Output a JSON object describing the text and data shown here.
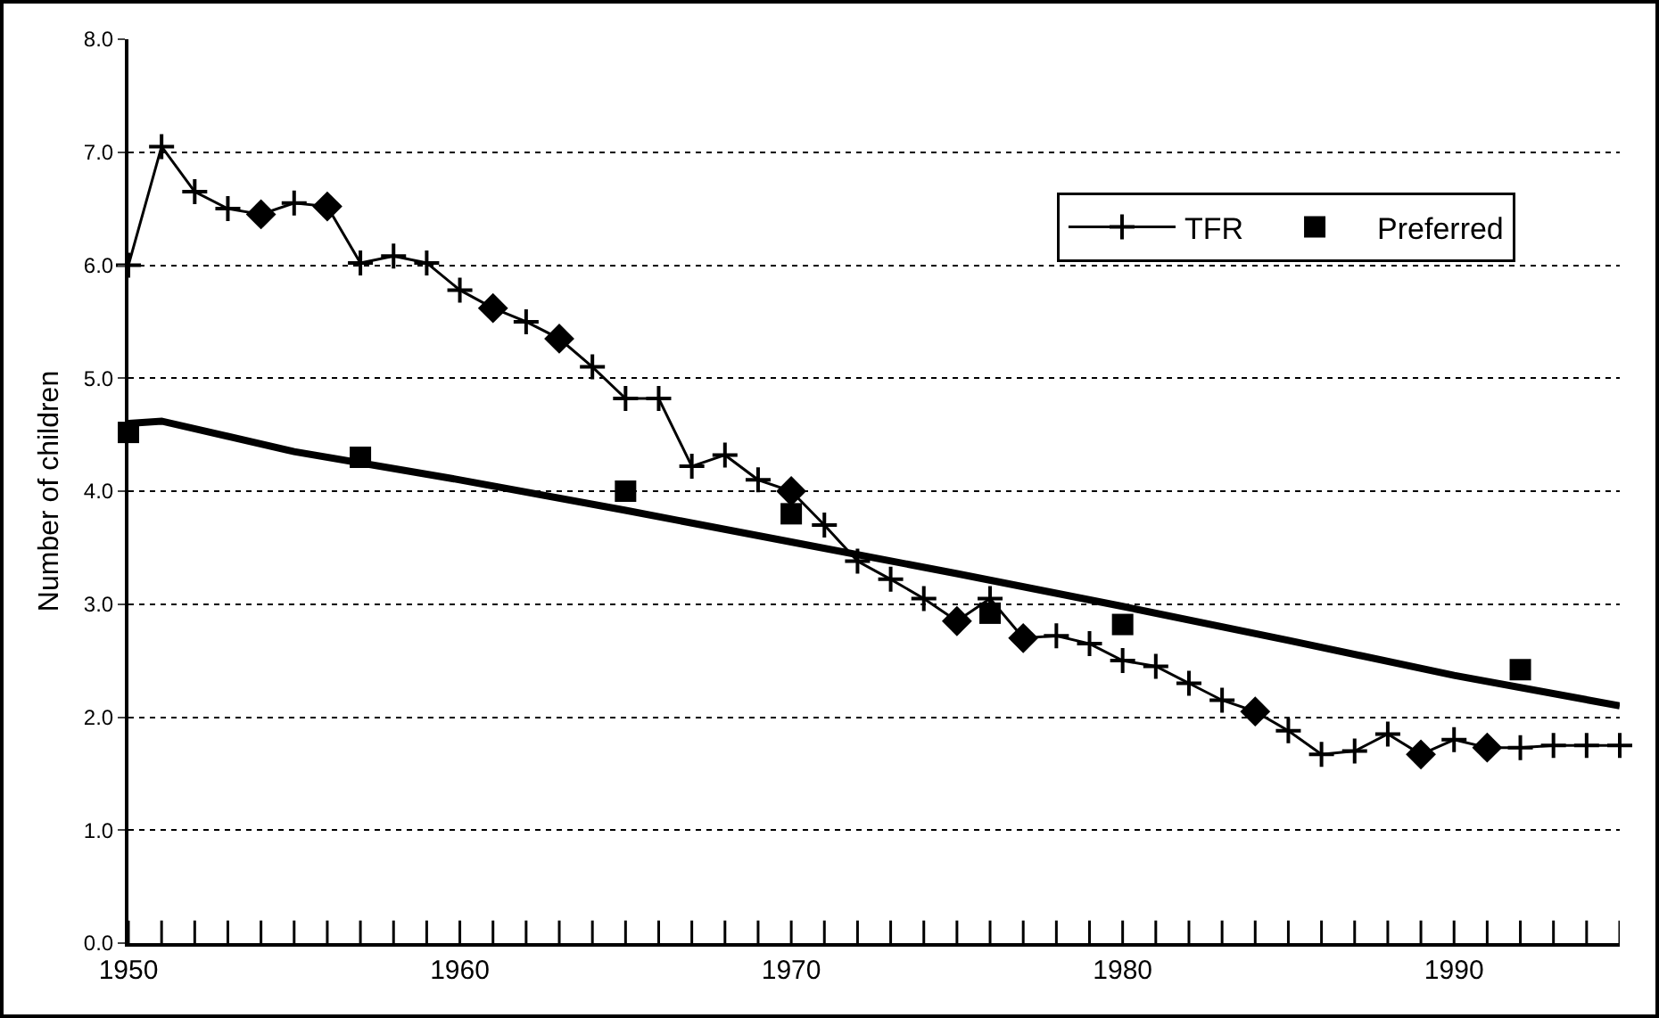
{
  "chart_data": {
    "type": "line",
    "ylabel": "Number of children",
    "xlim": [
      1950,
      1995
    ],
    "xticks": [
      {
        "value": 1950,
        "label": "1950"
      },
      {
        "value": 1951,
        "label": null
      },
      {
        "value": 1952,
        "label": null
      },
      {
        "value": 1953,
        "label": null
      },
      {
        "value": 1954,
        "label": null
      },
      {
        "value": 1955,
        "label": null
      },
      {
        "value": 1956,
        "label": null
      },
      {
        "value": 1957,
        "label": null
      },
      {
        "value": 1958,
        "label": null
      },
      {
        "value": 1959,
        "label": null
      },
      {
        "value": 1960,
        "label": "1960"
      },
      {
        "value": 1961,
        "label": null
      },
      {
        "value": 1962,
        "label": null
      },
      {
        "value": 1963,
        "label": null
      },
      {
        "value": 1964,
        "label": null
      },
      {
        "value": 1965,
        "label": null
      },
      {
        "value": 1966,
        "label": null
      },
      {
        "value": 1967,
        "label": null
      },
      {
        "value": 1968,
        "label": null
      },
      {
        "value": 1969,
        "label": null
      },
      {
        "value": 1970,
        "label": "1970"
      },
      {
        "value": 1971,
        "label": null
      },
      {
        "value": 1972,
        "label": null
      },
      {
        "value": 1973,
        "label": null
      },
      {
        "value": 1974,
        "label": null
      },
      {
        "value": 1975,
        "label": null
      },
      {
        "value": 1976,
        "label": null
      },
      {
        "value": 1977,
        "label": null
      },
      {
        "value": 1978,
        "label": null
      },
      {
        "value": 1979,
        "label": null
      },
      {
        "value": 1980,
        "label": "1980"
      },
      {
        "value": 1981,
        "label": null
      },
      {
        "value": 1982,
        "label": null
      },
      {
        "value": 1983,
        "label": null
      },
      {
        "value": 1984,
        "label": null
      },
      {
        "value": 1985,
        "label": null
      },
      {
        "value": 1986,
        "label": null
      },
      {
        "value": 1987,
        "label": null
      },
      {
        "value": 1988,
        "label": null
      },
      {
        "value": 1989,
        "label": null
      },
      {
        "value": 1990,
        "label": "1990"
      },
      {
        "value": 1991,
        "label": null
      },
      {
        "value": 1992,
        "label": null
      },
      {
        "value": 1993,
        "label": null
      },
      {
        "value": 1994,
        "label": null
      },
      {
        "value": 1995,
        "label": null
      }
    ],
    "ylim": [
      0,
      8
    ],
    "yticks": [
      {
        "value": 0,
        "label": "0.0"
      },
      {
        "value": 1,
        "label": "1.0"
      },
      {
        "value": 2,
        "label": "2.0"
      },
      {
        "value": 3,
        "label": "3.0"
      },
      {
        "value": 4,
        "label": "4.0"
      },
      {
        "value": 5,
        "label": "5.0"
      },
      {
        "value": 6,
        "label": "6.0"
      },
      {
        "value": 7,
        "label": "7.0"
      },
      {
        "value": 8,
        "label": "8.0"
      }
    ],
    "grid": "y",
    "legend": "top right",
    "series": [
      {
        "name": "TFR",
        "color": "#000000",
        "marker": "cross",
        "x": [
          1950,
          1951,
          1952,
          1953,
          1954,
          1955,
          1956,
          1957,
          1958,
          1959,
          1960,
          1961,
          1962,
          1963,
          1964,
          1965,
          1966,
          1967,
          1968,
          1969,
          1970,
          1971,
          1972,
          1973,
          1974,
          1975,
          1976,
          1977,
          1978,
          1979,
          1980,
          1981,
          1982,
          1983,
          1984,
          1985,
          1986,
          1987,
          1988,
          1989,
          1990,
          1991,
          1992,
          1993,
          1994,
          1995
        ],
        "values": [
          6.0,
          7.05,
          6.65,
          6.5,
          6.45,
          6.55,
          6.52,
          6.02,
          6.08,
          6.02,
          5.78,
          5.62,
          5.5,
          5.35,
          5.1,
          4.82,
          4.82,
          4.22,
          4.32,
          4.1,
          4.0,
          3.7,
          3.38,
          3.22,
          3.05,
          2.85,
          3.05,
          2.7,
          2.72,
          2.65,
          2.5,
          2.45,
          2.3,
          2.15,
          2.05,
          1.88,
          1.67,
          1.7,
          1.85,
          1.67,
          1.8,
          1.73,
          1.73,
          1.75,
          1.75,
          1.75
        ]
      },
      {
        "type": "scatter",
        "color": "#000000",
        "marker": "diamond",
        "x": [
          1954,
          1956,
          1961,
          1963,
          1970,
          1975,
          1977,
          1984,
          1989,
          1991
        ],
        "values": [
          6.45,
          6.52,
          5.62,
          5.35,
          4.0,
          2.85,
          2.7,
          2.05,
          1.67,
          1.73
        ]
      },
      {
        "name": "Preferred",
        "type": "scatter",
        "color": "#000000",
        "marker": "square",
        "x": [
          1950,
          1957,
          1965,
          1970,
          1976,
          1980,
          1992
        ],
        "values": [
          4.52,
          4.3,
          4.0,
          3.8,
          2.92,
          2.82,
          2.42
        ]
      },
      {
        "color": "#000000",
        "marker": "none",
        "x": [
          1950,
          1951,
          1955,
          1960,
          1965,
          1970,
          1975,
          1980,
          1985,
          1990,
          1995
        ],
        "values": [
          4.6,
          4.62,
          4.35,
          4.1,
          3.83,
          3.55,
          3.27,
          2.98,
          2.68,
          2.37,
          2.1
        ]
      }
    ]
  }
}
